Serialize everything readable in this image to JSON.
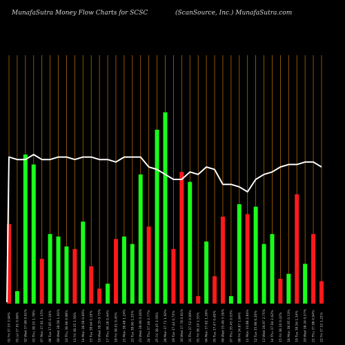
{
  "header": {
    "left": "MunafaSutra  Money Flow  Charts for SCSC",
    "right": "(ScanSource,  Inc.) MunafaSutra.com"
  },
  "chart_data": {
    "type": "bar",
    "ylim": [
      0,
      100
    ],
    "grid": true,
    "colors": {
      "up": "#19ff19",
      "down": "#ff1a1a",
      "line": "#ffffff",
      "grid": "#b36b00",
      "background": "#000000"
    },
    "categories": [
      "01 Fri 37.55 3.94%",
      "01 Jul 37.91 0.96%",
      "02 Wed 37.68 0.61%",
      "03 Thu 38.35 1.78%",
      "07 Mon 37.91 1.15%",
      "08 Tue 37.85 0.16%",
      "09 Wed 38.58 1.93%",
      "10 Thu 38.96 0.98%",
      "11 Fri 38.35 1.56%",
      "14 Mon 38.58 0.60%",
      "15 Tue 38.64 0.16%",
      "16 Wed 38.35 0.75%",
      "17 Thu 38.18 0.44%",
      "18 Fri 38.01 0.45%",
      "21 Mon 38.48 1.24%",
      "22 Tue 38.96 1.25%",
      "23 Wed 38.96 0.00%",
      "24 Thu 37.49 3.77%",
      "25 Fri 38.45 2.56%",
      "28 Mon 37.71 1.92%",
      "29 Tue 37.44 0.72%",
      "30 Wed 37.78 0.91%",
      "31 Thu 37.52 0.69%",
      "01 Fri 38.10 1.55%",
      "04 Mon 37.62 1.26%",
      "05 Tue 37.47 0.40%",
      "06 Wed 35.46 5.36%",
      "07 Thu 35.45 0.03%",
      "08 Fri 34.87 1.64%",
      "11 Mon 33.88 2.84%",
      "12 Tue 35.98 6.20%",
      "13 Wed 36.97 2.75%",
      "14 Thu 37.94 2.62%",
      "15 Fri 38.10 0.42%",
      "18 Mon 38.05 0.13%",
      "19 Tue 38.56 1.34%",
      "20 Wed 38.34 0.57%",
      "21 Thu 37.98 0.94%",
      "22 Fri 37.52 1.21%"
    ],
    "money_flow": [
      32,
      5,
      60,
      56,
      18,
      28,
      27,
      23,
      22,
      33,
      15,
      6,
      8,
      26,
      27,
      24,
      52,
      31,
      70,
      77,
      22,
      53,
      49,
      3,
      25,
      11,
      35,
      3,
      40,
      36,
      39,
      24,
      28,
      10,
      12,
      44,
      16,
      28,
      9
    ],
    "money_flow_direction": [
      "down",
      "up",
      "up",
      "up",
      "down",
      "up",
      "up",
      "up",
      "down",
      "up",
      "down",
      "down",
      "up",
      "down",
      "up",
      "up",
      "up",
      "down",
      "up",
      "up",
      "down",
      "down",
      "up",
      "down",
      "up",
      "down",
      "down",
      "up",
      "up",
      "down",
      "up",
      "up",
      "up",
      "down",
      "up",
      "down",
      "up",
      "down",
      "down"
    ],
    "price_line": [
      59,
      58,
      58,
      60,
      58,
      58,
      59,
      59,
      58,
      59,
      59,
      58,
      58,
      57,
      59,
      59,
      59,
      55,
      54,
      52,
      50,
      50,
      53,
      52,
      55,
      54,
      48,
      48,
      47,
      45,
      50,
      52,
      53,
      55,
      56,
      56,
      57,
      57,
      55
    ]
  }
}
